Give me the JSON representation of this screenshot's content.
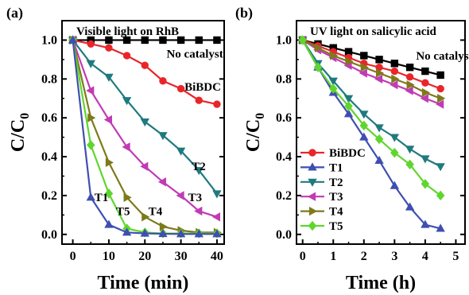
{
  "chart_data": [
    {
      "panel_label": "(a)",
      "type": "line",
      "title": "Visible light  on RhB",
      "xlabel": "Time (min)",
      "ylabel": "C/C0",
      "xlim": [
        -3,
        42
      ],
      "ylim": [
        -0.05,
        1.1
      ],
      "xticks": [
        0,
        10,
        20,
        30,
        40
      ],
      "yticks": [
        0.0,
        0.2,
        0.4,
        0.6,
        0.8,
        1.0
      ],
      "series": [
        {
          "name": "No catalyst",
          "color": "#000000",
          "marker": "square",
          "x": [
            0,
            5,
            10,
            15,
            20,
            25,
            30,
            35,
            40
          ],
          "y": [
            1.0,
            1.0,
            1.0,
            1.0,
            1.0,
            1.0,
            1.0,
            1.0,
            1.0
          ]
        },
        {
          "name": "BiBDC",
          "color": "#e8262a",
          "marker": "circle",
          "x": [
            0,
            5,
            10,
            15,
            20,
            25,
            30,
            35,
            40
          ],
          "y": [
            1.0,
            0.98,
            0.96,
            0.92,
            0.87,
            0.79,
            0.75,
            0.69,
            0.67
          ]
        },
        {
          "name": "T2",
          "color": "#1f7a7e",
          "marker": "triangle-down",
          "x": [
            0,
            5,
            10,
            15,
            20,
            25,
            30,
            35,
            40
          ],
          "y": [
            1.0,
            0.88,
            0.81,
            0.69,
            0.58,
            0.51,
            0.43,
            0.33,
            0.21
          ]
        },
        {
          "name": "T3",
          "color": "#c13bb5",
          "marker": "triangle-left",
          "x": [
            0,
            5,
            10,
            15,
            20,
            25,
            30,
            35,
            40
          ],
          "y": [
            1.0,
            0.74,
            0.59,
            0.45,
            0.35,
            0.27,
            0.2,
            0.12,
            0.09
          ]
        },
        {
          "name": "T4",
          "color": "#7e7a1a",
          "marker": "triangle-right",
          "x": [
            0,
            5,
            10,
            15,
            20,
            25,
            30,
            35,
            40
          ],
          "y": [
            1.0,
            0.6,
            0.37,
            0.19,
            0.09,
            0.04,
            0.02,
            0.01,
            0.01
          ]
        },
        {
          "name": "T5",
          "color": "#5fd62e",
          "marker": "diamond",
          "x": [
            0,
            5,
            10,
            15,
            20,
            25,
            30,
            35,
            40
          ],
          "y": [
            1.0,
            0.46,
            0.21,
            0.03,
            0.01,
            0.005,
            0.005,
            0.005,
            0.005
          ]
        },
        {
          "name": "T1",
          "color": "#3f4fb0",
          "marker": "triangle-up",
          "x": [
            0,
            5,
            10,
            15,
            20,
            25,
            30,
            35,
            40
          ],
          "y": [
            1.0,
            0.19,
            0.05,
            0.01,
            0.005,
            0.003,
            0.002,
            0.002,
            0.002
          ]
        }
      ],
      "annotations": [
        {
          "text": "No catalyst",
          "x": 26,
          "y": 0.91
        },
        {
          "text": "BiBDC",
          "x": 31,
          "y": 0.74
        },
        {
          "text": "T2",
          "x": 33,
          "y": 0.33
        },
        {
          "text": "T3",
          "x": 32,
          "y": 0.17
        },
        {
          "text": "T4",
          "x": 21,
          "y": 0.1
        },
        {
          "text": "T5",
          "x": 12,
          "y": 0.1
        },
        {
          "text": "T1",
          "x": 6,
          "y": 0.17
        }
      ]
    },
    {
      "panel_label": "(b)",
      "type": "line",
      "title": "UV light  on salicylic acid",
      "xlabel": "Time (h)",
      "ylabel": "C/C0",
      "xlim": [
        -0.2,
        5.3
      ],
      "ylim": [
        -0.05,
        1.1
      ],
      "xticks": [
        0,
        1,
        2,
        3,
        4,
        5
      ],
      "yticks": [
        0.0,
        0.2,
        0.4,
        0.6,
        0.8,
        1.0
      ],
      "legend_position": "left",
      "series": [
        {
          "name": "No catalyst",
          "color": "#000000",
          "marker": "square",
          "x": [
            0,
            0.5,
            1,
            1.5,
            2,
            2.5,
            3,
            3.5,
            4,
            4.5
          ],
          "y": [
            1.0,
            0.98,
            0.96,
            0.94,
            0.92,
            0.9,
            0.88,
            0.86,
            0.84,
            0.82
          ]
        },
        {
          "name": "BiBDC",
          "color": "#e8262a",
          "marker": "circle",
          "x": [
            0,
            0.5,
            1,
            1.5,
            2,
            2.5,
            3,
            3.5,
            4,
            4.5
          ],
          "y": [
            1.0,
            0.97,
            0.94,
            0.91,
            0.88,
            0.86,
            0.84,
            0.81,
            0.78,
            0.75
          ]
        },
        {
          "name": "T1",
          "color": "#3f4fb0",
          "marker": "triangle-up",
          "x": [
            0,
            0.5,
            1,
            1.5,
            2,
            2.5,
            3,
            3.5,
            4,
            4.5
          ],
          "y": [
            1.0,
            0.86,
            0.73,
            0.62,
            0.5,
            0.38,
            0.25,
            0.14,
            0.05,
            0.03
          ]
        },
        {
          "name": "T2",
          "color": "#1f7a7e",
          "marker": "triangle-down",
          "x": [
            0,
            0.5,
            1,
            1.5,
            2,
            2.5,
            3,
            3.5,
            4,
            4.5
          ],
          "y": [
            1.0,
            0.88,
            0.79,
            0.7,
            0.62,
            0.55,
            0.5,
            0.44,
            0.39,
            0.35
          ]
        },
        {
          "name": "T3",
          "color": "#c13bb5",
          "marker": "triangle-left",
          "x": [
            0,
            0.5,
            1,
            1.5,
            2,
            2.5,
            3,
            3.5,
            4,
            4.5
          ],
          "y": [
            1.0,
            0.95,
            0.91,
            0.87,
            0.83,
            0.8,
            0.77,
            0.74,
            0.7,
            0.67
          ]
        },
        {
          "name": "T4",
          "color": "#7e7a1a",
          "marker": "triangle-right",
          "x": [
            0,
            0.5,
            1,
            1.5,
            2,
            2.5,
            3,
            3.5,
            4,
            4.5
          ],
          "y": [
            1.0,
            0.96,
            0.92,
            0.89,
            0.86,
            0.83,
            0.8,
            0.77,
            0.73,
            0.7
          ]
        },
        {
          "name": "T5",
          "color": "#5fd62e",
          "marker": "diamond",
          "x": [
            0,
            0.5,
            1,
            1.5,
            2,
            2.5,
            3,
            3.5,
            4,
            4.5
          ],
          "y": [
            1.0,
            0.86,
            0.75,
            0.66,
            0.56,
            0.49,
            0.42,
            0.36,
            0.26,
            0.2
          ]
        }
      ],
      "legend": [
        "BiBDC",
        "T1",
        "T2",
        "T3",
        "T4",
        "T5"
      ],
      "annotations": [
        {
          "text": "No catalyst",
          "x": 3.7,
          "y": 0.9
        }
      ]
    }
  ]
}
